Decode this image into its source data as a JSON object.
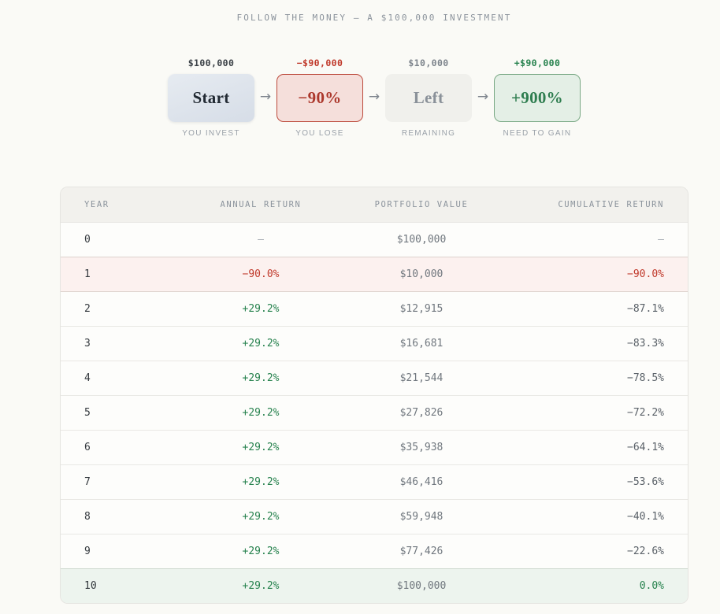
{
  "title": "FOLLOW THE MONEY — A $100,000 INVESTMENT",
  "flow": {
    "arrow": "→",
    "steps": [
      {
        "amount": "$100,000",
        "label": "Start",
        "caption": "YOU INVEST",
        "variant": "start"
      },
      {
        "amount": "−$90,000",
        "label": "−90%",
        "caption": "YOU LOSE",
        "variant": "loss"
      },
      {
        "amount": "$10,000",
        "label": "Left",
        "caption": "REMAINING",
        "variant": "left"
      },
      {
        "amount": "+$90,000",
        "label": "+900%",
        "caption": "NEED TO GAIN",
        "variant": "gain"
      }
    ]
  },
  "table": {
    "columns": [
      {
        "label": "YEAR"
      },
      {
        "label": "ANNUAL RETURN"
      },
      {
        "label": "PORTFOLIO VALUE"
      },
      {
        "label": "CUMULATIVE RETURN"
      }
    ],
    "rows": [
      {
        "year": "0",
        "annual": "—",
        "annual_tone": "muted",
        "value": "$100,000",
        "cumulative": "—",
        "cumulative_tone": "muted",
        "row_tone": "base"
      },
      {
        "year": "1",
        "annual": "−90.0%",
        "annual_tone": "loss",
        "value": "$10,000",
        "cumulative": "−90.0%",
        "cumulative_tone": "loss",
        "row_tone": "loss"
      },
      {
        "year": "2",
        "annual": "+29.2%",
        "annual_tone": "gain",
        "value": "$12,915",
        "cumulative": "−87.1%",
        "cumulative_tone": "plain",
        "row_tone": "base"
      },
      {
        "year": "3",
        "annual": "+29.2%",
        "annual_tone": "gain",
        "value": "$16,681",
        "cumulative": "−83.3%",
        "cumulative_tone": "plain",
        "row_tone": "base"
      },
      {
        "year": "4",
        "annual": "+29.2%",
        "annual_tone": "gain",
        "value": "$21,544",
        "cumulative": "−78.5%",
        "cumulative_tone": "plain",
        "row_tone": "base"
      },
      {
        "year": "5",
        "annual": "+29.2%",
        "annual_tone": "gain",
        "value": "$27,826",
        "cumulative": "−72.2%",
        "cumulative_tone": "plain",
        "row_tone": "base"
      },
      {
        "year": "6",
        "annual": "+29.2%",
        "annual_tone": "gain",
        "value": "$35,938",
        "cumulative": "−64.1%",
        "cumulative_tone": "plain",
        "row_tone": "base"
      },
      {
        "year": "7",
        "annual": "+29.2%",
        "annual_tone": "gain",
        "value": "$46,416",
        "cumulative": "−53.6%",
        "cumulative_tone": "plain",
        "row_tone": "base"
      },
      {
        "year": "8",
        "annual": "+29.2%",
        "annual_tone": "gain",
        "value": "$59,948",
        "cumulative": "−40.1%",
        "cumulative_tone": "plain",
        "row_tone": "base"
      },
      {
        "year": "9",
        "annual": "+29.2%",
        "annual_tone": "gain",
        "value": "$77,426",
        "cumulative": "−22.6%",
        "cumulative_tone": "plain",
        "row_tone": "base"
      },
      {
        "year": "10",
        "annual": "+29.2%",
        "annual_tone": "gain",
        "value": "$100,000",
        "cumulative": "0.0%",
        "cumulative_tone": "gain",
        "row_tone": "gain"
      }
    ]
  },
  "colors": {
    "loss_text": "#c0392b",
    "gain_text": "#27824e",
    "muted_text": "#8b939c",
    "loss_row_bg": "#fcf1ef",
    "gain_row_bg": "#edf4ee",
    "loss_box_bg": "#f5dfdb",
    "gain_box_bg": "#e4efe6",
    "start_box_bg": "#dce3ec",
    "left_box_bg": "#f0f0ec",
    "page_bg": "#fafaf6",
    "header_bg": "#f2f1ed"
  },
  "chart_data": {
    "type": "table",
    "title": "FOLLOW THE MONEY — A $100,000 INVESTMENT",
    "columns": [
      "Year",
      "Annual Return %",
      "Portfolio Value $",
      "Cumulative Return %"
    ],
    "years": [
      0,
      1,
      2,
      3,
      4,
      5,
      6,
      7,
      8,
      9,
      10
    ],
    "annual_return_pct": [
      null,
      -90.0,
      29.2,
      29.2,
      29.2,
      29.2,
      29.2,
      29.2,
      29.2,
      29.2,
      29.2
    ],
    "portfolio_value_usd": [
      100000,
      10000,
      12915,
      16681,
      21544,
      27826,
      35938,
      46416,
      59948,
      77426,
      100000
    ],
    "cumulative_return_pct": [
      null,
      -90.0,
      -87.1,
      -83.3,
      -78.5,
      -72.2,
      -64.1,
      -53.6,
      -40.1,
      -22.6,
      0.0
    ],
    "flow_summary": {
      "invested_usd": 100000,
      "loss_pct": -90,
      "remaining_usd": 10000,
      "gain_needed_pct": 900
    }
  }
}
